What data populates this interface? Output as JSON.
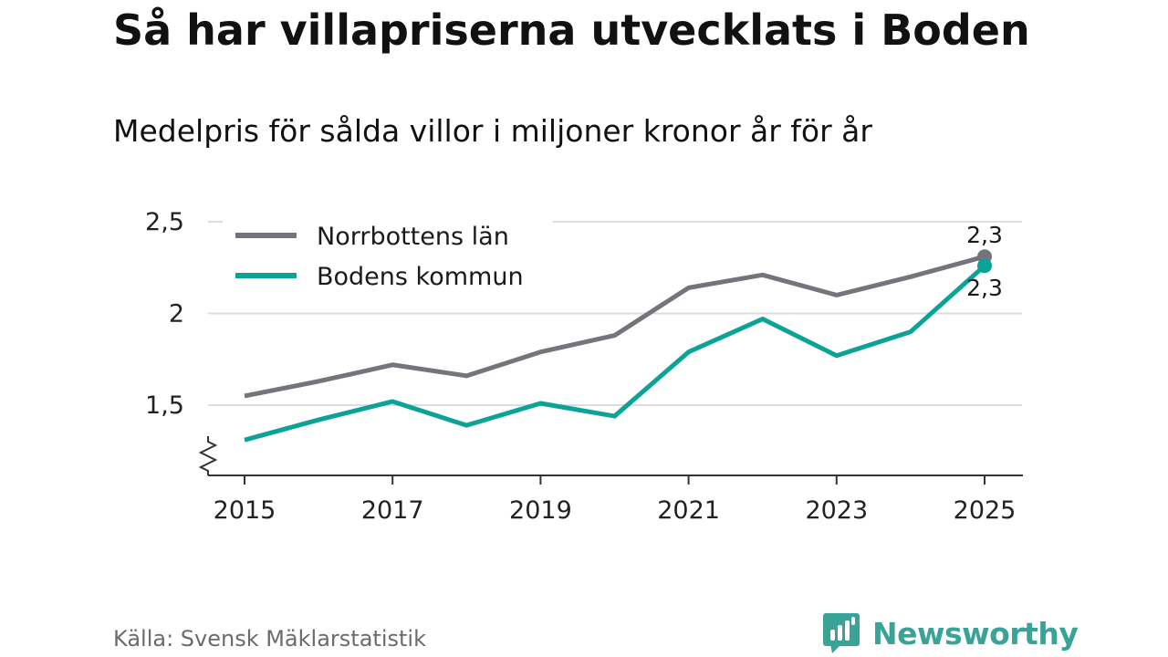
{
  "header": {
    "title": "Så har villapriserna utvecklats i Boden",
    "subtitle": "Medelpris för sålda villor i miljoner kronor år för år"
  },
  "footer": {
    "source": "Källa: Svensk Mäklarstatistik",
    "brand": "Newsworthy"
  },
  "colors": {
    "norrbotten": "#76747b",
    "boden": "#0aa396",
    "grid": "#dddddd",
    "axis": "#333333",
    "brand": "#3aa397"
  },
  "chart_data": {
    "type": "line",
    "title": "Så har villapriserna utvecklats i Boden",
    "subtitle": "Medelpris för sålda villor i miljoner kronor år för år",
    "xlabel": "",
    "ylabel": "",
    "x": [
      2015,
      2016,
      2017,
      2018,
      2019,
      2020,
      2021,
      2022,
      2023,
      2024,
      2025
    ],
    "x_ticks": [
      "2015",
      "2017",
      "2019",
      "2021",
      "2023",
      "2025"
    ],
    "y_ticks": [
      "1,5",
      "2",
      "2,5"
    ],
    "y_tick_values": [
      1.5,
      2,
      2.5
    ],
    "ylim": [
      1.12,
      2.62
    ],
    "axis_break": true,
    "grid": true,
    "legend_position": "top-left",
    "series": [
      {
        "name": "Norrbottens län",
        "values": [
          1.55,
          1.63,
          1.72,
          1.66,
          1.79,
          1.88,
          2.14,
          2.21,
          2.1,
          2.2,
          2.31
        ],
        "end_label": "2,3"
      },
      {
        "name": "Bodens kommun",
        "values": [
          1.31,
          1.42,
          1.52,
          1.39,
          1.51,
          1.44,
          1.79,
          1.97,
          1.77,
          1.9,
          2.26
        ],
        "end_label": "2,3"
      }
    ]
  }
}
